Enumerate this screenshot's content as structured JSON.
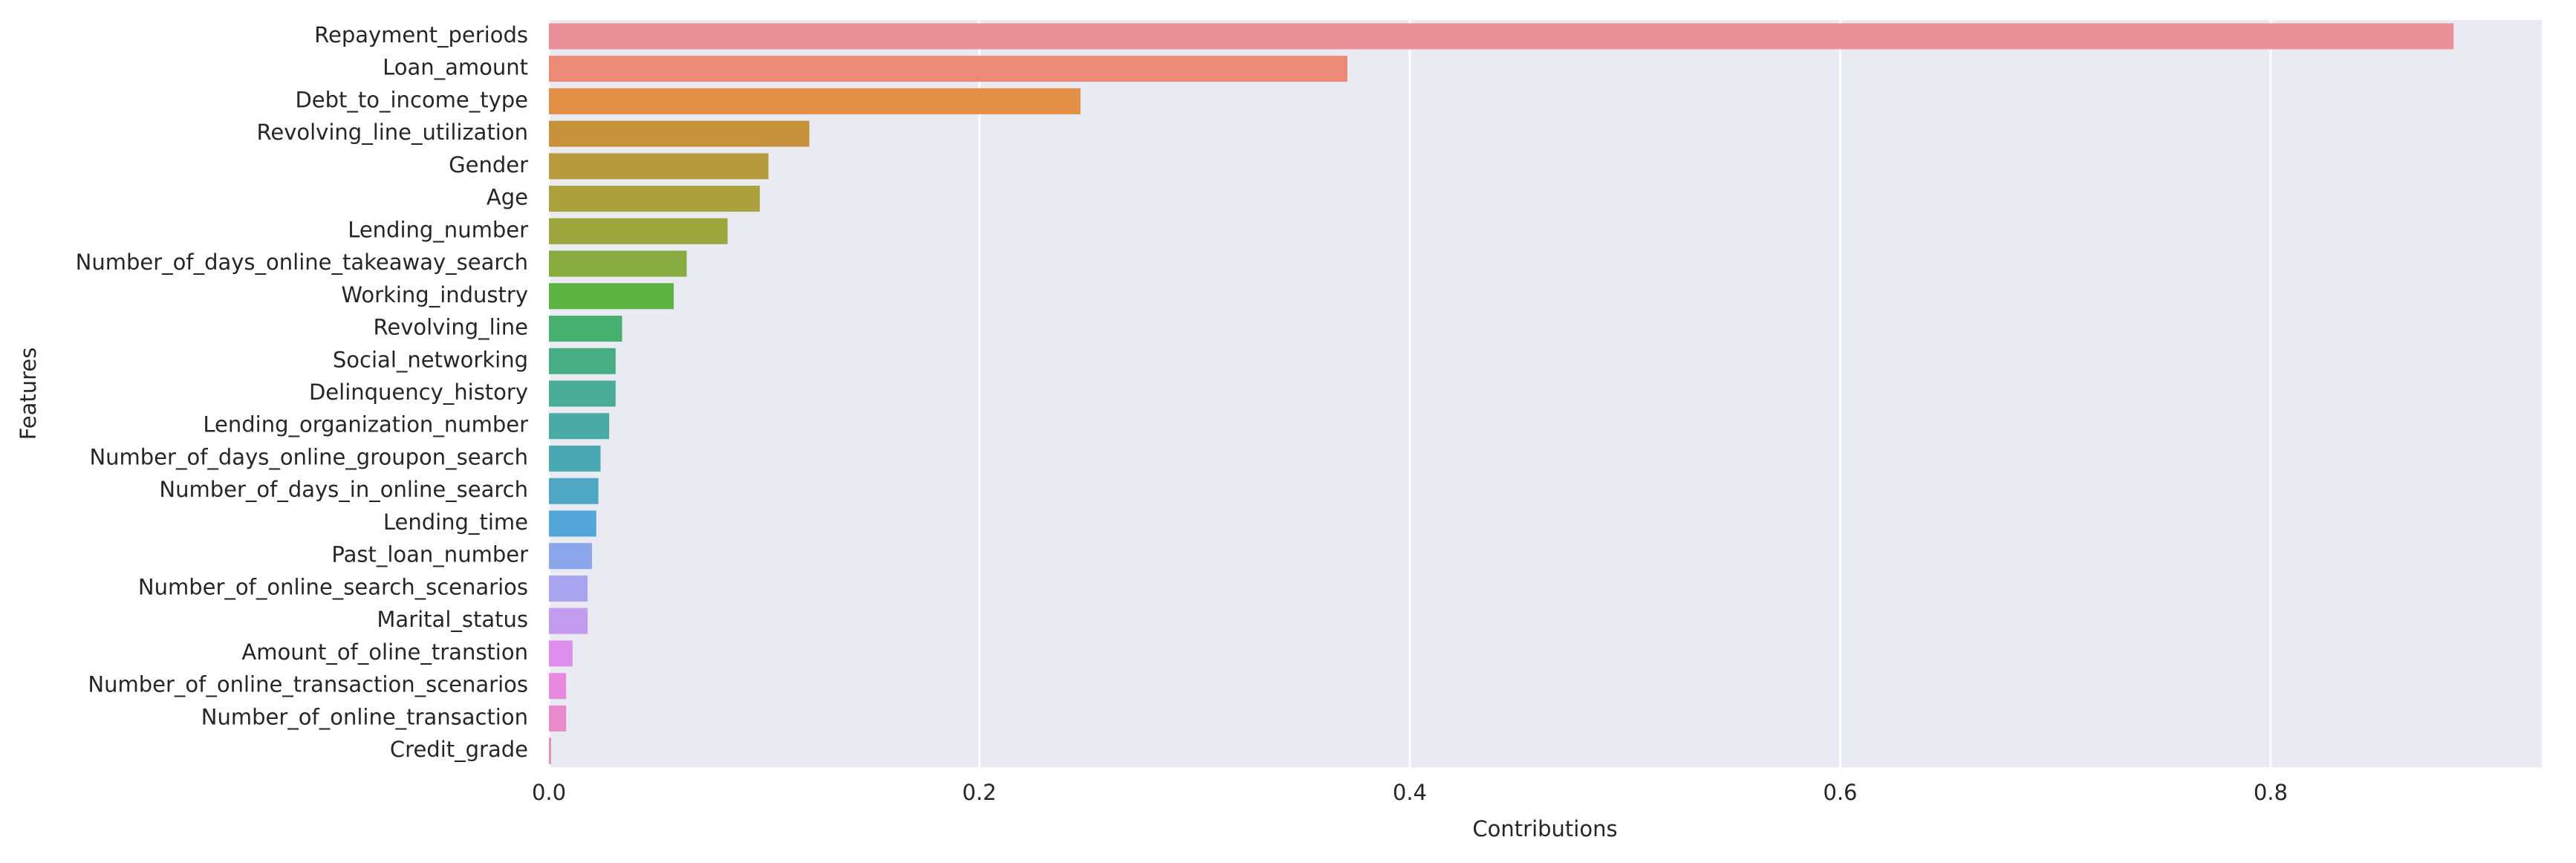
{
  "chart_data": {
    "type": "bar",
    "orientation": "horizontal",
    "xlabel": "Contributions",
    "ylabel": "Features",
    "categories": [
      "Repayment_periods",
      "Loan_amount",
      "Debt_to_income_type",
      "Revolving_line_utilization",
      "Gender",
      "Age",
      "Lending_number",
      "Number_of_days_online_takeaway_search",
      "Working_industry",
      "Revolving_line",
      "Social_networking",
      "Delinquency_history",
      "Lending_organization_number",
      "Number_of_days_online_groupon_search",
      "Number_of_days_in_online_search",
      "Lending_time",
      "Past_loan_number",
      "Number_of_online_search_scenarios",
      "Marital_status",
      "Amount_of_oline_transtion",
      "Number_of_online_transaction_scenarios",
      "Number_of_online_transaction",
      "Credit_grade"
    ],
    "values": [
      0.885,
      0.371,
      0.247,
      0.121,
      0.102,
      0.098,
      0.083,
      0.064,
      0.058,
      0.034,
      0.031,
      0.031,
      0.028,
      0.024,
      0.023,
      0.022,
      0.02,
      0.018,
      0.018,
      0.011,
      0.008,
      0.008,
      0.001
    ],
    "colors": [
      "#ea9099",
      "#ec8a78",
      "#e39046",
      "#c7923b",
      "#b79a3d",
      "#aba23d",
      "#9ca63d",
      "#87ab3e",
      "#5db443",
      "#47b070",
      "#48ae86",
      "#49ad97",
      "#4aaba6",
      "#4ba9b4",
      "#4ea8c3",
      "#51a6d7",
      "#8aa7ec",
      "#a8a4ef",
      "#c49cef",
      "#dc8fec",
      "#e689df",
      "#e88bcd",
      "#e98cb7"
    ],
    "xlim": [
      0,
      0.926
    ],
    "xticks": [
      {
        "value": 0,
        "label": "0.0"
      },
      0.2,
      0.4,
      0.6,
      0.8
    ],
    "grid": true
  }
}
